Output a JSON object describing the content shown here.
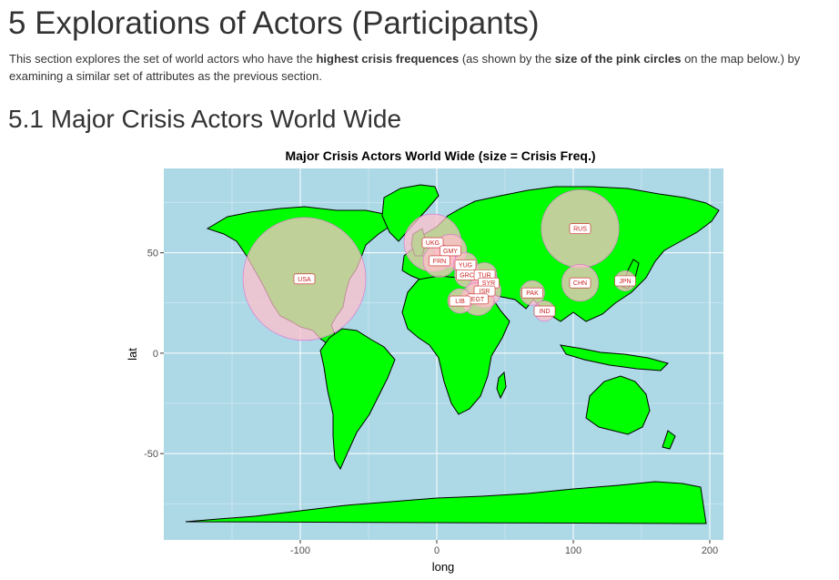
{
  "heading": "5 Explorations of Actors (Participants)",
  "intro": {
    "t1": "This section explores the set of world actors who have the ",
    "b1": "highest crisis frequences",
    "t2": " (as shown by the ",
    "b2": "size of the pink circles",
    "t3": " on the map below.) by examining a similar set of attributes as the previous section."
  },
  "subheading": "5.1 Major Crisis Actors World Wide",
  "chart_data": {
    "type": "scatter",
    "title": "Major Crisis Actors World Wide (size = Crisis Freq.)",
    "xlabel": "long",
    "ylabel": "lat",
    "xlim": [
      -200,
      210
    ],
    "ylim": [
      -93,
      92
    ],
    "xticks": [
      -100,
      0,
      100,
      200
    ],
    "yticks": [
      -50,
      0,
      50
    ],
    "grid": true,
    "colors": {
      "panel": "#add8e6",
      "land": "#00ff00",
      "bubble_fill": "#ffc0cb",
      "bubble_stroke": "#da70d6",
      "label_text": "#cc2222",
      "grid": "#ffffff"
    },
    "points": [
      {
        "label": "USA",
        "long": -97,
        "lat": 37,
        "size": 30
      },
      {
        "label": "RUS",
        "long": 105,
        "lat": 62,
        "size": 19
      },
      {
        "label": "UKG",
        "long": -3,
        "lat": 55,
        "size": 14
      },
      {
        "label": "GMY",
        "long": 10,
        "lat": 51,
        "size": 8
      },
      {
        "label": "FRN",
        "long": 2,
        "lat": 46,
        "size": 8
      },
      {
        "label": "YUG",
        "long": 21,
        "lat": 44,
        "size": 6
      },
      {
        "label": "GRC",
        "long": 22,
        "lat": 39,
        "size": 6
      },
      {
        "label": "TUR",
        "long": 35,
        "lat": 39,
        "size": 6
      },
      {
        "label": "SYR",
        "long": 38,
        "lat": 35,
        "size": 5
      },
      {
        "label": "ISR",
        "long": 35,
        "lat": 31,
        "size": 8
      },
      {
        "label": "EGT",
        "long": 30,
        "lat": 27,
        "size": 8
      },
      {
        "label": "LIB",
        "long": 17,
        "lat": 26,
        "size": 6
      },
      {
        "label": "PAK",
        "long": 70,
        "lat": 30,
        "size": 6
      },
      {
        "label": "IND",
        "long": 79,
        "lat": 21,
        "size": 5
      },
      {
        "label": "CHN",
        "long": 105,
        "lat": 35,
        "size": 9
      },
      {
        "label": "JPN",
        "long": 138,
        "lat": 36,
        "size": 5
      }
    ]
  }
}
